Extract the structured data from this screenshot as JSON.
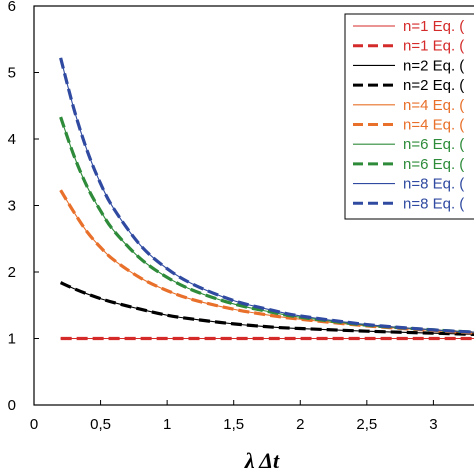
{
  "chart_data": {
    "type": "line",
    "xlabel": "λ Δt",
    "ylabel": "",
    "xlim": [
      0,
      3.35
    ],
    "ylim": [
      0,
      6
    ],
    "xticks": [
      {
        "v": 0,
        "label": "0"
      },
      {
        "v": 0.5,
        "label": "0,5"
      },
      {
        "v": 1,
        "label": "1"
      },
      {
        "v": 1.5,
        "label": "1,5"
      },
      {
        "v": 2,
        "label": "2"
      },
      {
        "v": 2.5,
        "label": "2,5"
      },
      {
        "v": 3,
        "label": "3"
      }
    ],
    "yticks": [
      {
        "v": 0,
        "label": "0"
      },
      {
        "v": 1,
        "label": "1"
      },
      {
        "v": 2,
        "label": "2"
      },
      {
        "v": 3,
        "label": "3"
      },
      {
        "v": 4,
        "label": "4"
      },
      {
        "v": 5,
        "label": "5"
      },
      {
        "v": 6,
        "label": "6"
      }
    ],
    "x": [
      0.2,
      0.3,
      0.4,
      0.5,
      0.6,
      0.8,
      1.0,
      1.2,
      1.5,
      1.8,
      2.0,
      2.5,
      3.0,
      3.35
    ],
    "series": [
      {
        "name": "n=1 Eq. (",
        "color": "#d42a2a",
        "dash": false,
        "values": [
          1,
          1,
          1,
          1,
          1,
          1,
          1,
          1,
          1,
          1,
          1,
          1,
          1,
          1
        ]
      },
      {
        "name": "n=1 Eq. (",
        "color": "#d42a2a",
        "dash": true,
        "values": [
          1,
          1,
          1,
          1,
          1,
          1,
          1,
          1,
          1,
          1,
          1,
          1,
          1,
          1
        ]
      },
      {
        "name": "n=2 Eq. (",
        "color": "#000000",
        "dash": false,
        "values": [
          1.84,
          1.75,
          1.67,
          1.6,
          1.54,
          1.44,
          1.35,
          1.29,
          1.22,
          1.17,
          1.15,
          1.11,
          1.08,
          1.06
        ]
      },
      {
        "name": "n=2 Eq. (",
        "color": "#000000",
        "dash": true,
        "values": [
          1.84,
          1.75,
          1.67,
          1.6,
          1.54,
          1.44,
          1.35,
          1.29,
          1.22,
          1.17,
          1.15,
          1.11,
          1.08,
          1.06
        ]
      },
      {
        "name": "n=4 Eq. (",
        "color": "#e8702a",
        "dash": false,
        "values": [
          3.23,
          2.9,
          2.6,
          2.37,
          2.18,
          1.91,
          1.72,
          1.58,
          1.44,
          1.34,
          1.29,
          1.19,
          1.12,
          1.08
        ]
      },
      {
        "name": "n=4 Eq. (",
        "color": "#e8702a",
        "dash": true,
        "values": [
          3.23,
          2.9,
          2.6,
          2.37,
          2.18,
          1.91,
          1.72,
          1.58,
          1.44,
          1.34,
          1.29,
          1.19,
          1.12,
          1.08
        ]
      },
      {
        "name": "n=6 Eq. (",
        "color": "#2e8b3a",
        "dash": false,
        "values": [
          4.33,
          3.75,
          3.28,
          2.92,
          2.62,
          2.2,
          1.92,
          1.72,
          1.52,
          1.39,
          1.32,
          1.2,
          1.13,
          1.09
        ]
      },
      {
        "name": "n=6 Eq. (",
        "color": "#2e8b3a",
        "dash": true,
        "values": [
          4.33,
          3.75,
          3.28,
          2.92,
          2.62,
          2.2,
          1.92,
          1.72,
          1.52,
          1.39,
          1.32,
          1.2,
          1.13,
          1.09
        ]
      },
      {
        "name": "n=8 Eq. (",
        "color": "#2f4aa0",
        "dash": false,
        "values": [
          5.22,
          4.45,
          3.82,
          3.33,
          2.95,
          2.4,
          2.05,
          1.81,
          1.57,
          1.42,
          1.34,
          1.21,
          1.13,
          1.09
        ]
      },
      {
        "name": "n=8 Eq. (",
        "color": "#2f4aa0",
        "dash": true,
        "values": [
          5.22,
          4.45,
          3.82,
          3.33,
          2.95,
          2.4,
          2.05,
          1.81,
          1.57,
          1.42,
          1.34,
          1.21,
          1.13,
          1.09
        ]
      }
    ],
    "legend_placement": "top-right",
    "grid": false
  }
}
